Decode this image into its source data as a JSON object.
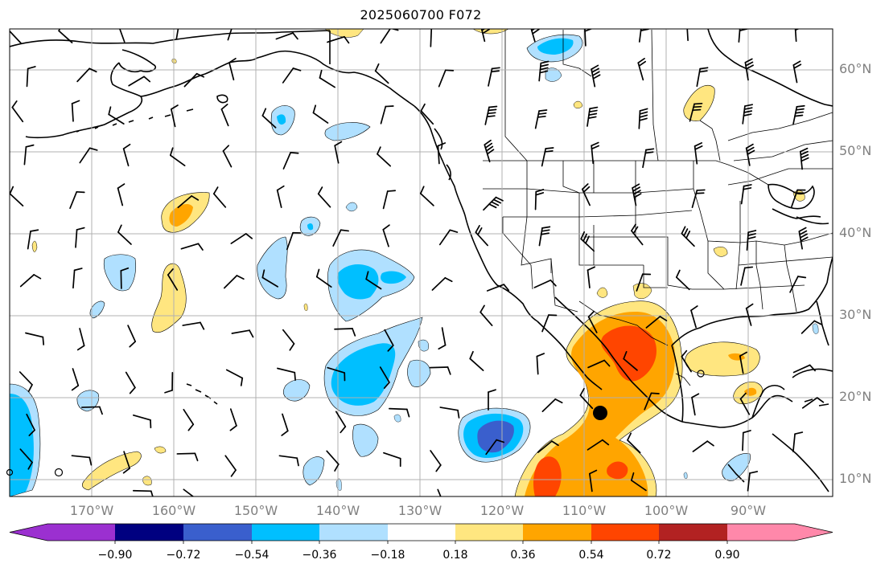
{
  "title": "2025060700 F072",
  "lat_labels": [
    "60°N",
    "50°N",
    "40°N",
    "30°N",
    "20°N",
    "10°N"
  ],
  "lon_labels": [
    "170°W",
    "160°W",
    "150°W",
    "140°W",
    "130°W",
    "120°W",
    "110°W",
    "100°W",
    "90°W"
  ],
  "colorbar": {
    "labels": [
      "−0.90",
      "−0.72",
      "−0.54",
      "−0.36",
      "−0.18",
      "0.18",
      "0.36",
      "0.54",
      "0.72",
      "0.90"
    ],
    "colors": [
      "#9b30d0",
      "#000080",
      "#3a5fcd",
      "#00bfff",
      "#b0e0ff",
      "#ffffff",
      "#ffe680",
      "#ffa500",
      "#ff4500",
      "#b22222",
      "#ff88aa"
    ]
  }
}
